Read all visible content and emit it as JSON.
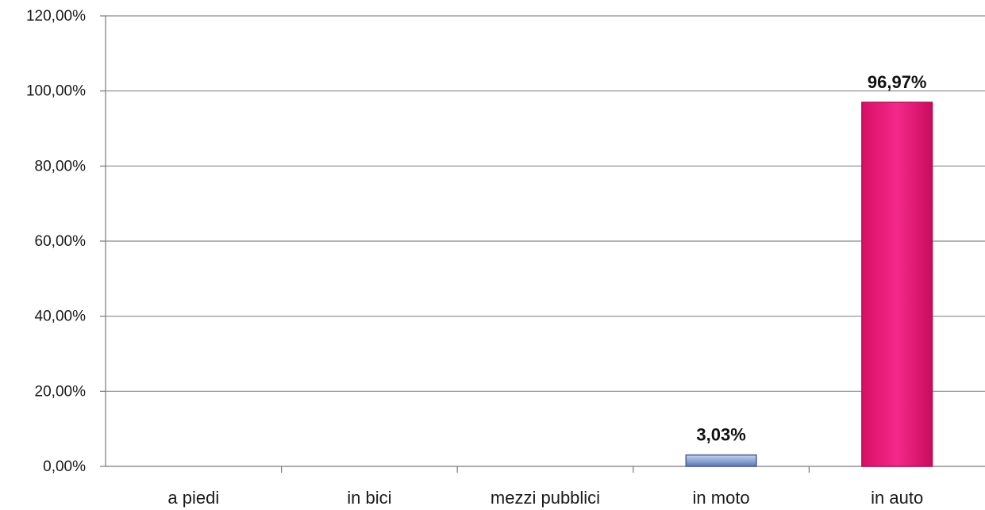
{
  "chart_data": {
    "type": "bar",
    "title": "",
    "xlabel": "",
    "ylabel": "",
    "categories": [
      "a piedi",
      "in bici",
      "mezzi pubblici",
      "in moto",
      "in auto"
    ],
    "values": [
      0,
      0,
      0,
      3.03,
      96.97
    ],
    "data_labels": [
      "",
      "",
      "",
      "3,03%",
      "96,97%"
    ],
    "ylim": [
      0,
      120
    ],
    "y_ticks": [
      {
        "value": 0,
        "label": "0,00%"
      },
      {
        "value": 20,
        "label": "20,00%"
      },
      {
        "value": 40,
        "label": "40,00%"
      },
      {
        "value": 60,
        "label": "60,00%"
      },
      {
        "value": 80,
        "label": "80,00%"
      },
      {
        "value": 100,
        "label": "100,00%"
      },
      {
        "value": 120,
        "label": "120,00%"
      }
    ],
    "grid": true,
    "legend": "none",
    "bar_colors": [
      "#7f97c9",
      "#7f97c9",
      "#7f97c9",
      "#7f97c9",
      "#ee1a7a"
    ]
  }
}
